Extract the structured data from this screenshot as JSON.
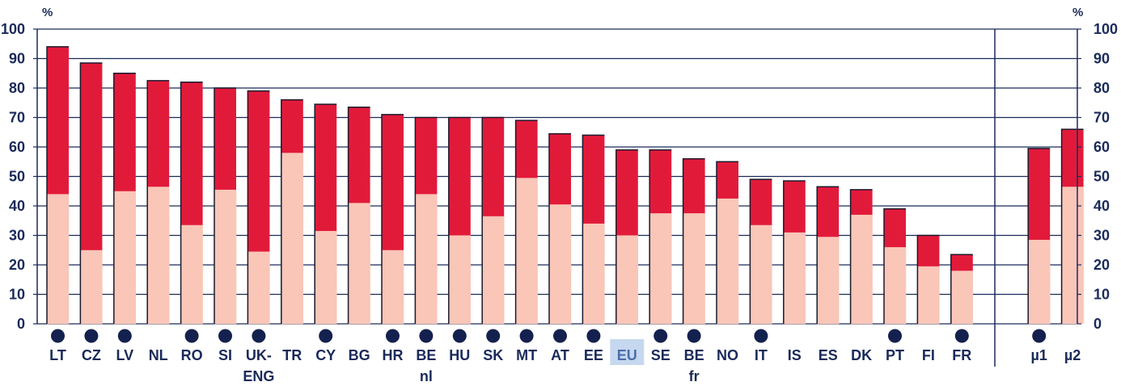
{
  "chart_data": {
    "type": "bar",
    "stacked": true,
    "ylabel_left": "%",
    "ylabel_right": "%",
    "ylim": [
      0,
      100
    ],
    "yticks": [
      "0",
      "10",
      "20",
      "30",
      "40",
      "50",
      "60",
      "70",
      "80",
      "90",
      "100"
    ],
    "grid": true,
    "highlighted_category": "EU",
    "categories": [
      {
        "label": [
          "LT"
        ],
        "marker": true,
        "lower": 44,
        "total": 94
      },
      {
        "label": [
          "CZ"
        ],
        "marker": true,
        "lower": 25,
        "total": 88.5
      },
      {
        "label": [
          "LV"
        ],
        "marker": true,
        "lower": 45,
        "total": 85
      },
      {
        "label": [
          "NL"
        ],
        "marker": false,
        "lower": 46.5,
        "total": 82.5
      },
      {
        "label": [
          "RO"
        ],
        "marker": true,
        "lower": 33.5,
        "total": 82
      },
      {
        "label": [
          "SI"
        ],
        "marker": true,
        "lower": 45.5,
        "total": 80
      },
      {
        "label": [
          "UK-",
          "ENG"
        ],
        "marker": true,
        "lower": 24.5,
        "total": 79
      },
      {
        "label": [
          "TR"
        ],
        "marker": false,
        "lower": 58,
        "total": 76
      },
      {
        "label": [
          "CY"
        ],
        "marker": true,
        "lower": 31.5,
        "total": 74.5
      },
      {
        "label": [
          "BG"
        ],
        "marker": false,
        "lower": 41,
        "total": 73.5
      },
      {
        "label": [
          "HR"
        ],
        "marker": true,
        "lower": 25,
        "total": 71
      },
      {
        "label": [
          "BE",
          "nl"
        ],
        "marker": true,
        "lower": 44,
        "total": 70
      },
      {
        "label": [
          "HU"
        ],
        "marker": true,
        "lower": 30,
        "total": 70
      },
      {
        "label": [
          "SK"
        ],
        "marker": true,
        "lower": 36.5,
        "total": 70
      },
      {
        "label": [
          "MT"
        ],
        "marker": true,
        "lower": 49.5,
        "total": 69
      },
      {
        "label": [
          "AT"
        ],
        "marker": true,
        "lower": 40.5,
        "total": 64.5
      },
      {
        "label": [
          "EE"
        ],
        "marker": true,
        "lower": 34,
        "total": 64
      },
      {
        "label": [
          "EU"
        ],
        "marker": false,
        "lower": 30,
        "total": 59
      },
      {
        "label": [
          "SE"
        ],
        "marker": true,
        "lower": 37.5,
        "total": 59
      },
      {
        "label": [
          "BE",
          "fr"
        ],
        "marker": true,
        "lower": 37.5,
        "total": 56
      },
      {
        "label": [
          "NO"
        ],
        "marker": false,
        "lower": 42.5,
        "total": 55
      },
      {
        "label": [
          "IT"
        ],
        "marker": true,
        "lower": 33.5,
        "total": 49
      },
      {
        "label": [
          "IS"
        ],
        "marker": false,
        "lower": 31,
        "total": 48.5
      },
      {
        "label": [
          "ES"
        ],
        "marker": false,
        "lower": 29.5,
        "total": 46.5
      },
      {
        "label": [
          "DK"
        ],
        "marker": false,
        "lower": 37,
        "total": 45.5
      },
      {
        "label": [
          "PT"
        ],
        "marker": true,
        "lower": 26,
        "total": 39
      },
      {
        "label": [
          "FI"
        ],
        "marker": false,
        "lower": 19.5,
        "total": 30
      },
      {
        "label": [
          "FR"
        ],
        "marker": true,
        "lower": 18,
        "total": 23.5
      },
      {
        "label": [
          "µ1"
        ],
        "marker": true,
        "lower": 28.5,
        "total": 59.5
      },
      {
        "label": [
          "µ2"
        ],
        "marker": false,
        "lower": 46.5,
        "total": 66
      }
    ],
    "colors": {
      "lower": "#f9c6b8",
      "upper": "#e21a3a",
      "grid": "#1a2a5a",
      "axis": "#1a2a5a",
      "marker": "#14214f",
      "highlight_bg": "#c6d8ef",
      "highlight_text": "#4a6fa8"
    }
  }
}
